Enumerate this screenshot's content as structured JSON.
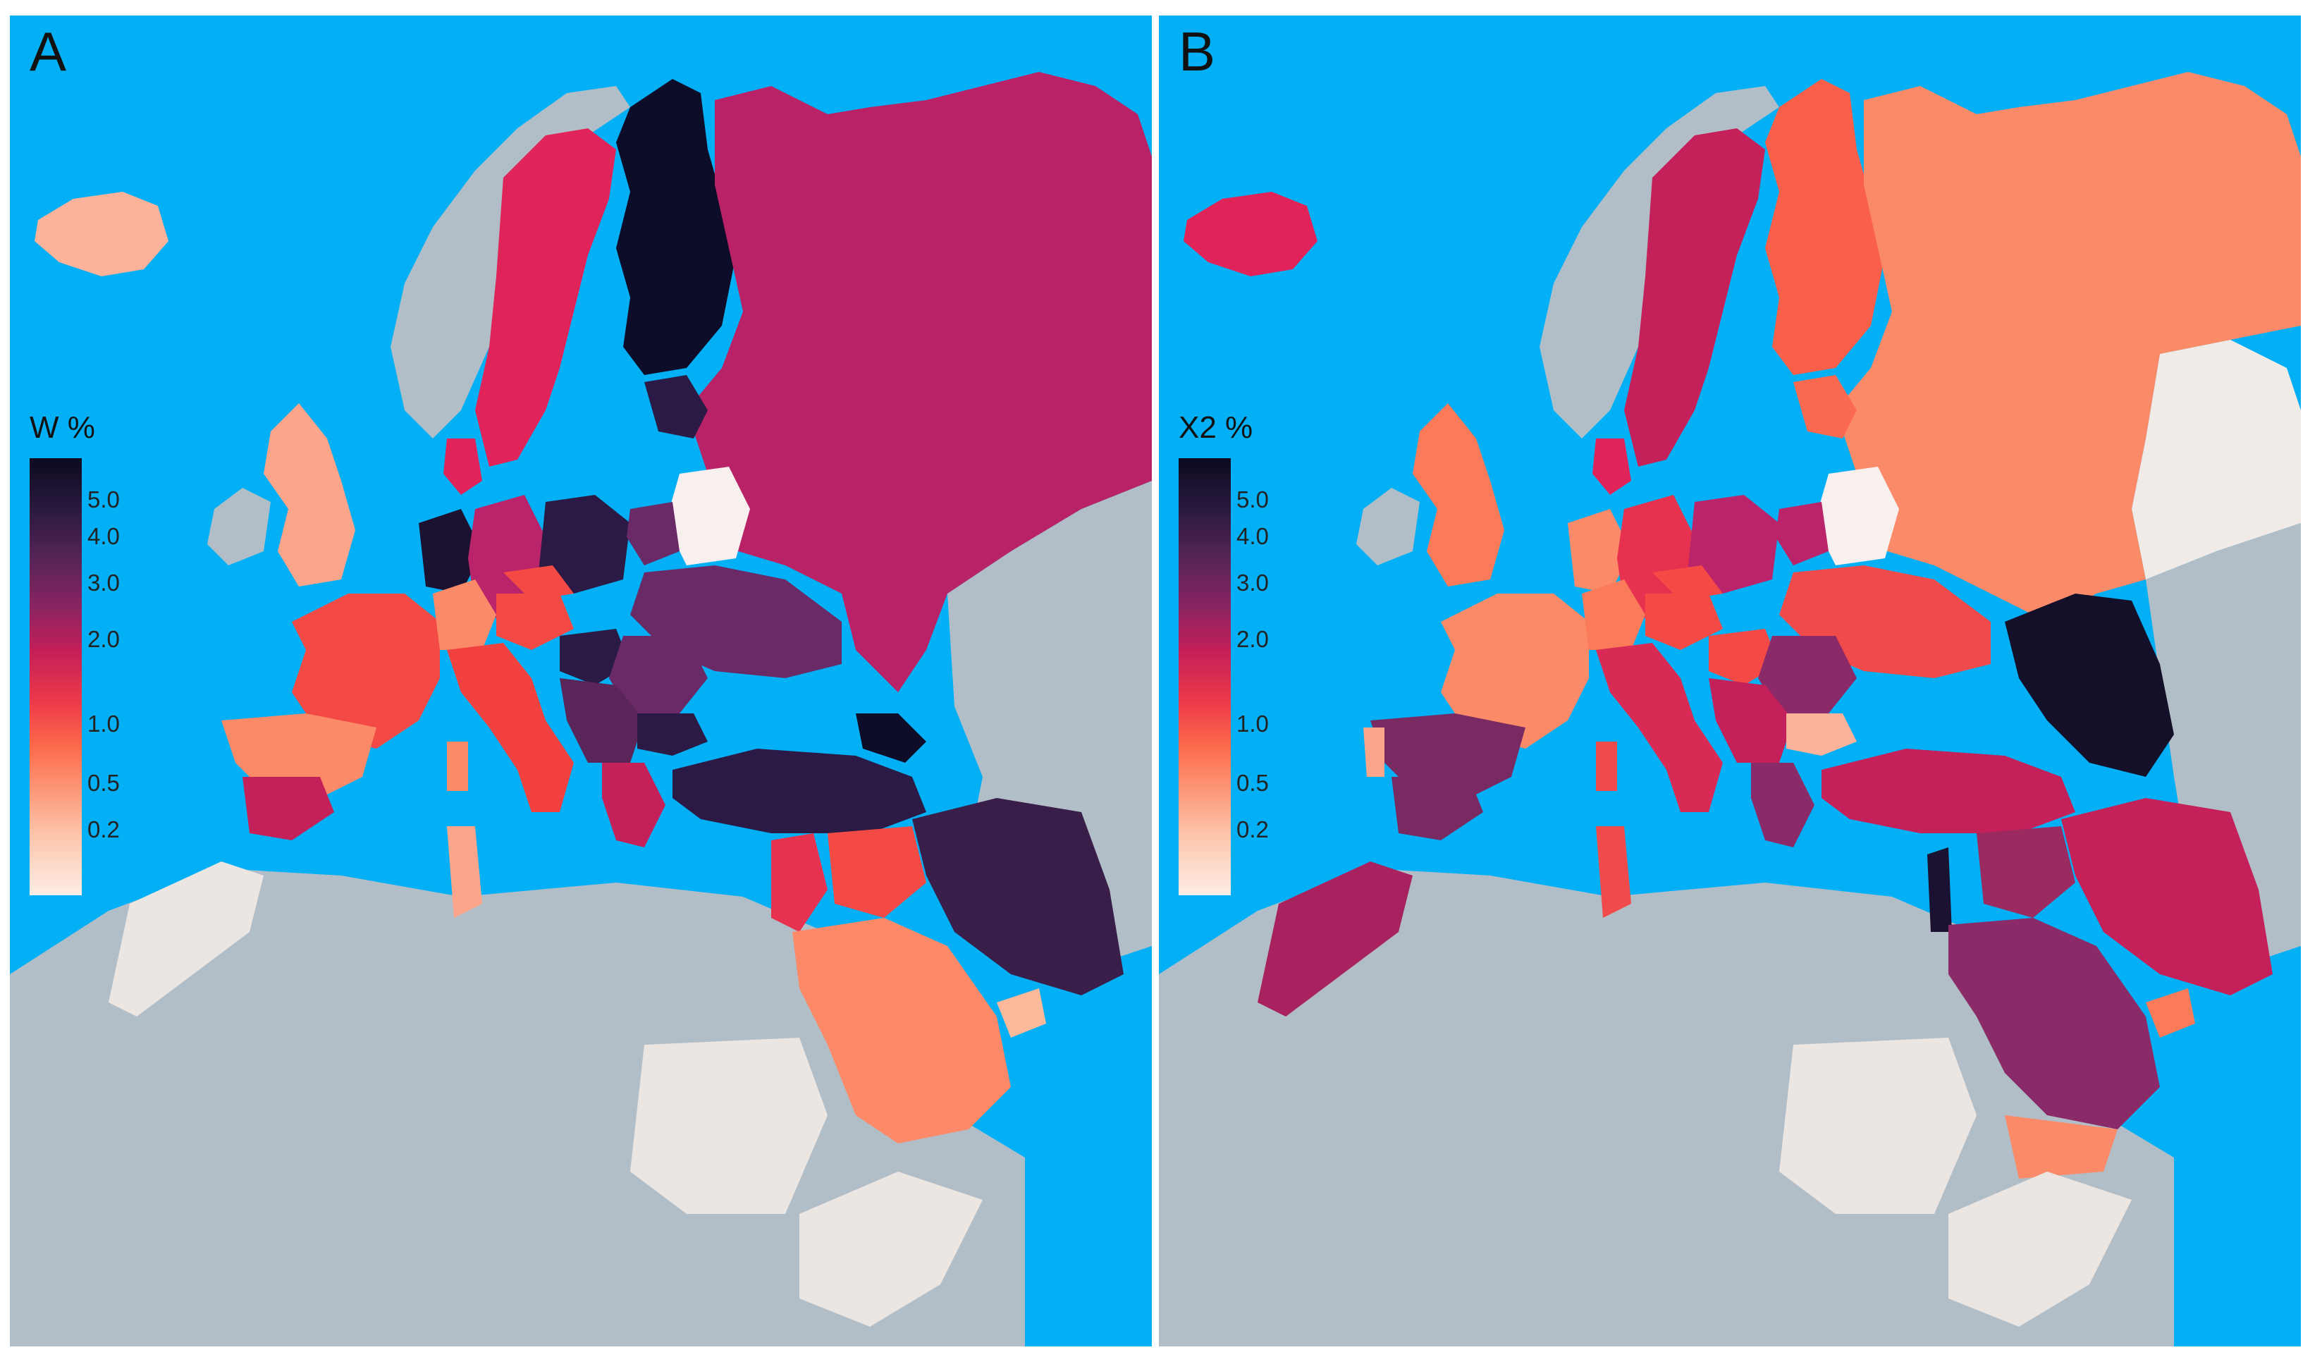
{
  "panels": [
    {
      "letter": "A",
      "legend_title": "W %",
      "legend_ticks": [
        "5.0",
        "4.0",
        "3.0",
        "2.0",
        "1.0",
        "0.5",
        "0.2"
      ],
      "regions": {
        "iceland": "#fdb39a",
        "uk": "#fda58a",
        "ireland": "#b2bec7",
        "norway": "#b2bec7",
        "sweden": "#e0245a",
        "finland": "#0d0d2a",
        "russia": "#b92266",
        "baltics": "#2a1a45",
        "belarus": "#f7f0ee",
        "denmark": "#e0245a",
        "netherlands": "#1a1230",
        "germany": "#b9246a",
        "poland": "#2a1a45",
        "lithuania": "#6a2a68",
        "ukraine": "#6a2a68",
        "france": "#f44a45",
        "switzerland": "#fb8a68",
        "austria": "#f44a45",
        "czech": "#f44a45",
        "hungary": "#2a1a45",
        "romania": "#6a2a68",
        "balkans": "#5a2558",
        "bulgaria": "#2a1a45",
        "italy": "#f2413f",
        "spain": "#fb8a68",
        "portugal": "#fb8a68",
        "andalusia": "#c4205a",
        "greece": "#c4205a",
        "turkey": "#2a1a45",
        "caucasus": "#0d0d2a",
        "iran": "#3a1e4a",
        "arabia": "#fc8a68",
        "levant": "#e7324f",
        "iraq": "#f44a45",
        "morocco": "#ece6e3",
        "tunisia": "#fda58a",
        "sardinia": "#fb8a68",
        "sudan": "#ece6e3",
        "horn": "#ece6e3",
        "oman": "#fcb99c"
      }
    },
    {
      "letter": "B",
      "legend_title": "X2 %",
      "legend_ticks": [
        "5.0",
        "4.0",
        "3.0",
        "2.0",
        "1.0",
        "0.5",
        "0.2"
      ],
      "regions": {
        "iceland": "#e0245a",
        "uk": "#fa7a5a",
        "ireland": "#b2bec7",
        "norway": "#b2bec7",
        "sweden": "#c4205a",
        "finland": "#fa5f4a",
        "russia": "#fb8a68",
        "kazakh": "#f1ebe8",
        "baltics": "#fb6a50",
        "belarus": "#f7f0ee",
        "denmark": "#e0245a",
        "netherlands": "#fb8a68",
        "germany": "#e7324f",
        "poland": "#b9246a",
        "lithuania": "#b9246a",
        "ukraine": "#f04a4a",
        "france": "#fb8a68",
        "switzerland": "#fa7a5a",
        "austria": "#f44a45",
        "czech": "#f44a45",
        "hungary": "#f44a45",
        "romania": "#8a2a68",
        "balkans": "#c4205a",
        "bulgaria": "#fdb39a",
        "italy": "#d82a55",
        "spain": "#7a2a62",
        "portugal": "#fda58a",
        "andalusia": "#7a2a62",
        "greece": "#8a2a68",
        "turkey": "#c4205a",
        "caucasus": "#14102a",
        "iran": "#c4205a",
        "arabia": "#8a2a68",
        "levant": "#1a1230",
        "iraq": "#9a2a60",
        "morocco": "#a8225f",
        "tunisia": "#f04a4a",
        "sardinia": "#f04a4a",
        "sudan": "#ece6e3",
        "horn": "#ece6e3",
        "oman": "#fa7a5a",
        "yemen": "#fb8a68"
      }
    }
  ],
  "colors": {
    "ocean": "#03b0f5",
    "nodata_land": "#b2bec7"
  }
}
